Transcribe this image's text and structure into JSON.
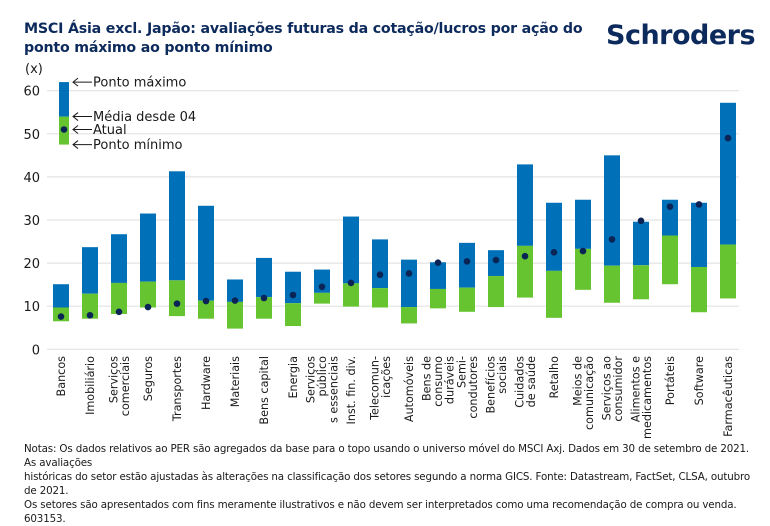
{
  "header": {
    "title": "MSCI Ásia excl. Japão: avaliações futuras da cotação/lucros por ação do ponto máximo ao ponto mínimo",
    "logo": "Schroders"
  },
  "notes": [
    "Notas: Os dados relativos ao PER são agregados da base para o topo usando o universo móvel do MSCI Axj. Dados em 30 de setembro de 2021. As avaliações",
    "históricas do setor estão ajustadas às alterações na classificação dos setores segundo a norma GICS. Fonte: Datastream, FactSet, CLSA, outubro de 2021.",
    "Os setores são apresentados com fins meramente ilustrativos e não devem ser interpretados como uma recomendação de compra ou venda. 603153."
  ],
  "colors": {
    "upper_range": "#0070b8",
    "lower_range": "#66c430",
    "current_dot": "#0a2456",
    "gridline": "#e3e3e3",
    "title": "#0d2a5c"
  },
  "chart_data": {
    "type": "floating-bar",
    "title": "MSCI Ásia excl. Japão: avaliações futuras da cotação/lucros por ação do ponto máximo ao ponto mínimo",
    "ylabel": "(x)",
    "xlabel": "",
    "ylim": [
      0,
      60
    ],
    "yticks": [
      0,
      10,
      20,
      30,
      40,
      50,
      60
    ],
    "grid": true,
    "legend": {
      "position": "top-left",
      "items": [
        "Ponto máximo",
        "Média desde 04",
        "Atual",
        "Ponto mínimo"
      ],
      "sample": {
        "max": 62,
        "avg": 54,
        "current": 51,
        "min": 47.5
      }
    },
    "categories": [
      [
        "Bancos"
      ],
      [
        "Imobiliário"
      ],
      [
        "Serviços",
        "comerciais"
      ],
      [
        "Seguros"
      ],
      [
        "Transportes"
      ],
      [
        "Hardware"
      ],
      [
        "Materiais"
      ],
      [
        "Bens capital"
      ],
      [
        "Energia"
      ],
      [
        "Serviços",
        "público",
        "s essenciais"
      ],
      [
        "Inst. fin. div."
      ],
      [
        "Telecomun-",
        "icações"
      ],
      [
        "Automóveis"
      ],
      [
        "Bens de",
        "consumo",
        "duráveis"
      ],
      [
        "Semi-",
        "condutores"
      ],
      [
        "Benefícios",
        "sociais"
      ],
      [
        "Cuidados",
        "de saúde"
      ],
      [
        "Retalho"
      ],
      [
        "Meios de",
        "comunicação"
      ],
      [
        "Serviços ao",
        "consumidor"
      ],
      [
        "Alimentos e",
        "medicamentos"
      ],
      [
        "Portáteis"
      ],
      [
        "Software"
      ],
      [
        "Farmacêuticas"
      ]
    ],
    "series": [
      {
        "name": "Ponto máximo",
        "values": [
          15.1,
          23.7,
          26.7,
          31.5,
          41.3,
          33.3,
          16.2,
          21.2,
          18.0,
          18.5,
          30.8,
          25.5,
          20.8,
          20.2,
          24.7,
          23.0,
          42.9,
          34.0,
          34.7,
          45.0,
          29.6,
          34.7,
          34.0,
          57.2
        ]
      },
      {
        "name": "Média desde 04",
        "values": [
          9.7,
          12.9,
          15.4,
          15.7,
          16.0,
          11.3,
          11.0,
          12.1,
          10.7,
          13.1,
          15.3,
          14.2,
          9.8,
          14.0,
          14.3,
          17.0,
          24.0,
          18.2,
          23.3,
          19.4,
          19.5,
          26.4,
          19.1,
          24.3
        ]
      },
      {
        "name": "Atual",
        "values": [
          7.6,
          7.9,
          8.7,
          9.8,
          10.6,
          11.2,
          11.3,
          11.9,
          12.6,
          14.5,
          15.4,
          17.3,
          17.6,
          20.1,
          20.4,
          20.7,
          21.6,
          22.5,
          22.8,
          25.5,
          29.8,
          33.1,
          33.6,
          49.0
        ]
      },
      {
        "name": "Ponto mínimo",
        "values": [
          6.5,
          7.1,
          8.2,
          9.7,
          7.7,
          7.1,
          4.8,
          7.1,
          5.4,
          10.6,
          9.9,
          9.7,
          6.0,
          9.5,
          8.7,
          9.8,
          12.0,
          7.3,
          13.8,
          10.8,
          11.6,
          15.1,
          8.6,
          11.8
        ]
      }
    ]
  }
}
